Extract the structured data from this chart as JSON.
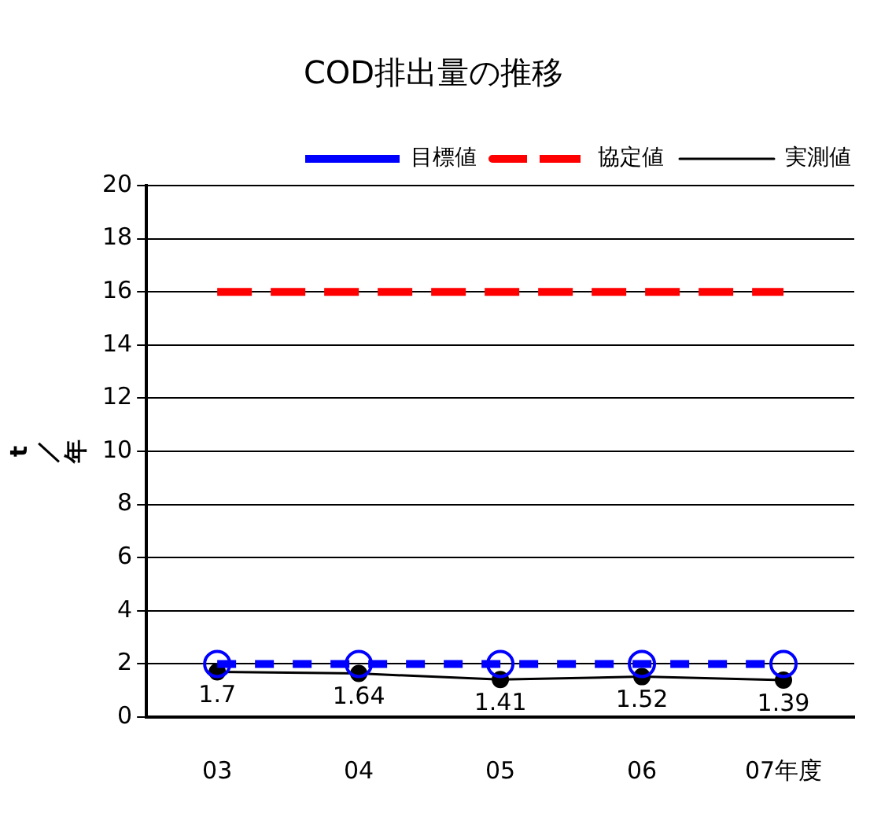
{
  "chart_data": {
    "type": "line",
    "title": "COD排出量の推移",
    "ylabel": "t／年",
    "categories": [
      "03",
      "04",
      "05",
      "06",
      "07年度"
    ],
    "series": [
      {
        "name": "協定値",
        "color": "#ff0000",
        "values": [
          16,
          16,
          16,
          16,
          16
        ],
        "marker": "none",
        "line_style": "dashed"
      },
      {
        "name": "実測値",
        "color": "#000000",
        "values": [
          1.7,
          1.64,
          1.41,
          1.52,
          1.39
        ],
        "marker": "circle",
        "line_style": "solid",
        "value_labels": [
          "1.7",
          "1.64",
          "1.41",
          "1.52",
          "1.39"
        ]
      },
      {
        "name": "目標値",
        "color": "#0000ff",
        "values": [
          2,
          2,
          2,
          2,
          2
        ],
        "marker": "circle",
        "line_style": "dotted"
      }
    ],
    "ylim": [
      0,
      20
    ],
    "yticks": [
      0,
      2,
      4,
      6,
      8,
      10,
      12,
      14,
      16,
      18,
      20
    ],
    "grid": "y",
    "legend": "top right"
  }
}
